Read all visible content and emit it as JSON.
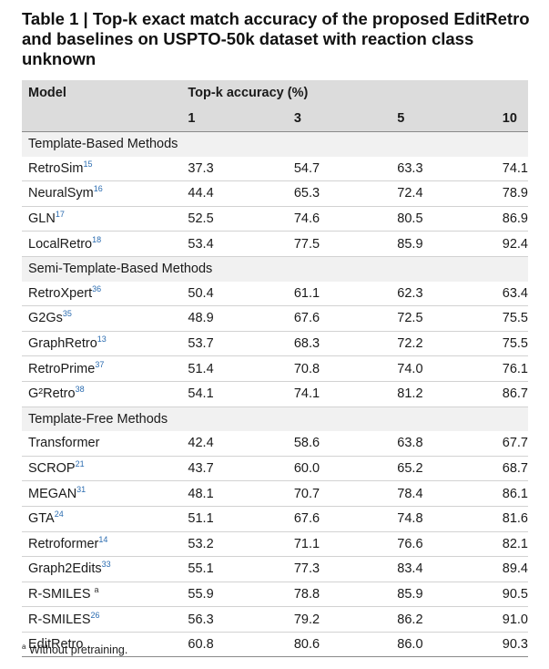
{
  "caption": "Table 1 | Top-k exact match accuracy of the proposed EditRetro and baselines on USPTO-50k dataset with reaction class unknown",
  "header": {
    "model_label": "Model",
    "topk_label": "Top-k accuracy (%)",
    "k_values": [
      "1",
      "3",
      "5",
      "10"
    ]
  },
  "groups": [
    {
      "name": "Template-Based Methods",
      "rows": [
        {
          "model": "RetroSim",
          "ref": "15",
          "values": [
            "37.3",
            "54.7",
            "63.3",
            "74.1"
          ]
        },
        {
          "model": "NeuralSym",
          "ref": "16",
          "values": [
            "44.4",
            "65.3",
            "72.4",
            "78.9"
          ]
        },
        {
          "model": "GLN",
          "ref": "17",
          "values": [
            "52.5",
            "74.6",
            "80.5",
            "86.9"
          ]
        },
        {
          "model": "LocalRetro",
          "ref": "18",
          "values": [
            "53.4",
            "77.5",
            "85.9",
            "92.4"
          ]
        }
      ]
    },
    {
      "name": "Semi-Template-Based Methods",
      "rows": [
        {
          "model": "RetroXpert",
          "ref": "36",
          "values": [
            "50.4",
            "61.1",
            "62.3",
            "63.4"
          ]
        },
        {
          "model": "G2Gs",
          "ref": "35",
          "values": [
            "48.9",
            "67.6",
            "72.5",
            "75.5"
          ]
        },
        {
          "model": "GraphRetro",
          "ref": "13",
          "values": [
            "53.7",
            "68.3",
            "72.2",
            "75.5"
          ]
        },
        {
          "model": "RetroPrime",
          "ref": "37",
          "values": [
            "51.4",
            "70.8",
            "74.0",
            "76.1"
          ]
        },
        {
          "model": "G²Retro",
          "ref": "38",
          "values": [
            "54.1",
            "74.1",
            "81.2",
            "86.7"
          ]
        }
      ]
    },
    {
      "name": "Template-Free Methods",
      "rows": [
        {
          "model": "Transformer",
          "ref": "",
          "values": [
            "42.4",
            "58.6",
            "63.8",
            "67.7"
          ]
        },
        {
          "model": "SCROP",
          "ref": "21",
          "values": [
            "43.7",
            "60.0",
            "65.2",
            "68.7"
          ]
        },
        {
          "model": "MEGAN",
          "ref": "31",
          "values": [
            "48.1",
            "70.7",
            "78.4",
            "86.1"
          ]
        },
        {
          "model": "GTA",
          "ref": "24",
          "values": [
            "51.1",
            "67.6",
            "74.8",
            "81.6"
          ]
        },
        {
          "model": "Retroformer",
          "ref": "14",
          "values": [
            "53.2",
            "71.1",
            "76.6",
            "82.1"
          ]
        },
        {
          "model": "Graph2Edits",
          "ref": "33",
          "values": [
            "55.1",
            "77.3",
            "83.4",
            "89.4"
          ]
        },
        {
          "model": "R-SMILES",
          "ref": "a",
          "values": [
            "55.9",
            "78.8",
            "85.9",
            "90.5"
          ]
        },
        {
          "model": "R-SMILES",
          "ref": "26",
          "values": [
            "56.3",
            "79.2",
            "86.2",
            "91.0"
          ]
        },
        {
          "model": "EditRetro",
          "ref": "",
          "values": [
            "60.8",
            "80.6",
            "86.0",
            "90.3"
          ]
        }
      ]
    }
  ],
  "footnote": {
    "marker": "a",
    "text": "Without pretraining."
  }
}
